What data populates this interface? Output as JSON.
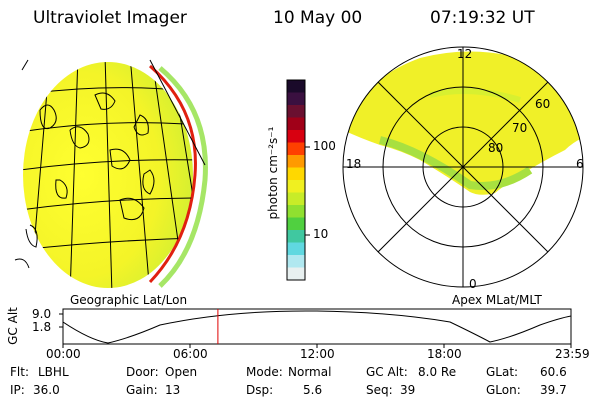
{
  "header": {
    "instrument": "Ultraviolet Imager",
    "date": "10 May 00",
    "time": "07:19:32 UT"
  },
  "colorbar": {
    "label": "photon cm⁻²s⁻¹",
    "ticks": [
      "100",
      "10"
    ],
    "colors": [
      "#1a0a2a",
      "#3a1040",
      "#6a1030",
      "#a00018",
      "#d80010",
      "#ff4000",
      "#ff9a00",
      "#ffd800",
      "#f0f020",
      "#c8ec28",
      "#90e030",
      "#50d040",
      "#40c8a0",
      "#60d8e0",
      "#b0e8f0",
      "#e8f0f0"
    ]
  },
  "left_map": {
    "caption": "Geographic Lat/Lon"
  },
  "polar_map": {
    "caption": "Apex MLat/MLT",
    "mlt_labels": {
      "top": "12",
      "left": "18",
      "right": "6",
      "bottom": "0"
    },
    "lat_labels": [
      "60",
      "70",
      "80"
    ]
  },
  "altitude_plot": {
    "label": "GC Alt",
    "y_ticks": [
      "9.0",
      "1.8"
    ],
    "x_ticks": [
      "00:00",
      "06:00",
      "12:00",
      "18:00",
      "23:59"
    ],
    "marker_fraction": 0.305
  },
  "info": {
    "flt_label": "Flt:",
    "flt_value": "LBHL",
    "ip_label": "IP:",
    "ip_value": "36.0",
    "door_label": "Door:",
    "door_value": "Open",
    "gain_label": "Gain:",
    "gain_value": "13",
    "mode_label": "Mode:",
    "mode_value": "Normal",
    "dsp_label": "Dsp:",
    "dsp_value": "5.6",
    "gcalt_label": "GC Alt:",
    "gcalt_value": "8.0 Re",
    "seq_label": "Seq:",
    "seq_value": "39",
    "glat_label": "GLat:",
    "glat_value": "60.6",
    "glon_label": "GLon:",
    "glon_value": "39.7"
  }
}
